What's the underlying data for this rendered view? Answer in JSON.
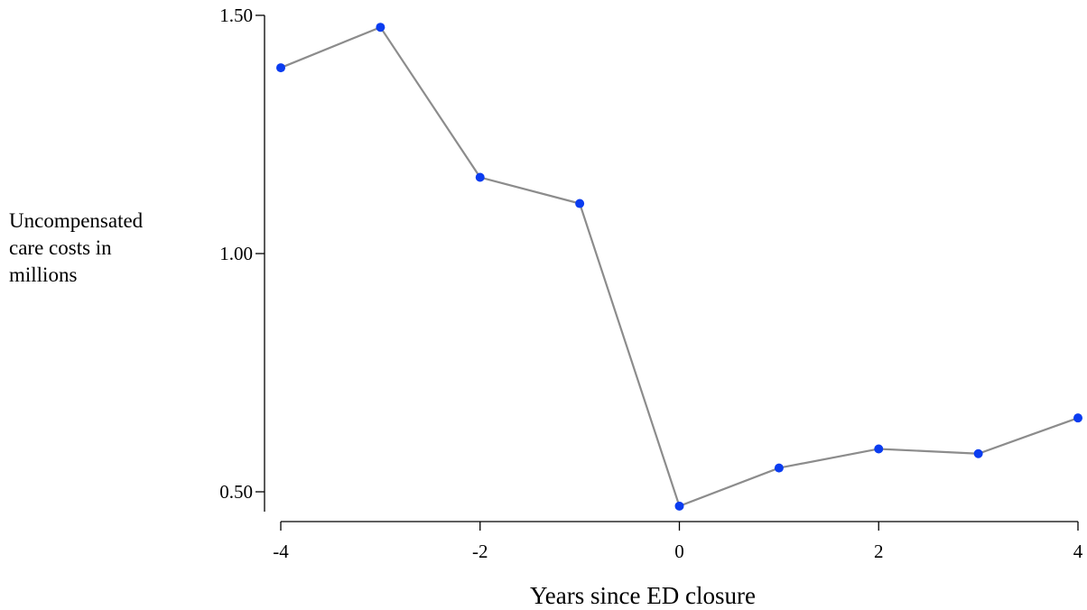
{
  "chart_data": {
    "type": "line",
    "title": "",
    "xlabel": "Years since ED closure",
    "ylabel": "Uncompensated care costs in millions",
    "ylabel_lines": [
      "Uncompensated",
      "care costs in",
      "millions"
    ],
    "x_ticks": [
      -4,
      -2,
      0,
      2,
      4
    ],
    "x_tick_labels": [
      "-4",
      "-2",
      "0",
      "2",
      "4"
    ],
    "y_ticks": [
      0.5,
      1.0,
      1.5
    ],
    "y_tick_labels": [
      "0.50",
      "1.00",
      "1.50"
    ],
    "xlim": [
      -4,
      4
    ],
    "ylim": [
      0.5,
      1.5
    ],
    "grid": false,
    "line_color": "#8c8c8c",
    "marker_color": "#0a3cf0",
    "series": [
      {
        "x": [
          -4,
          -3,
          -2,
          -1,
          0,
          1,
          2,
          3,
          4
        ],
        "y": [
          1.39,
          1.475,
          1.16,
          1.105,
          0.47,
          0.55,
          0.59,
          0.58,
          0.655
        ]
      }
    ]
  }
}
